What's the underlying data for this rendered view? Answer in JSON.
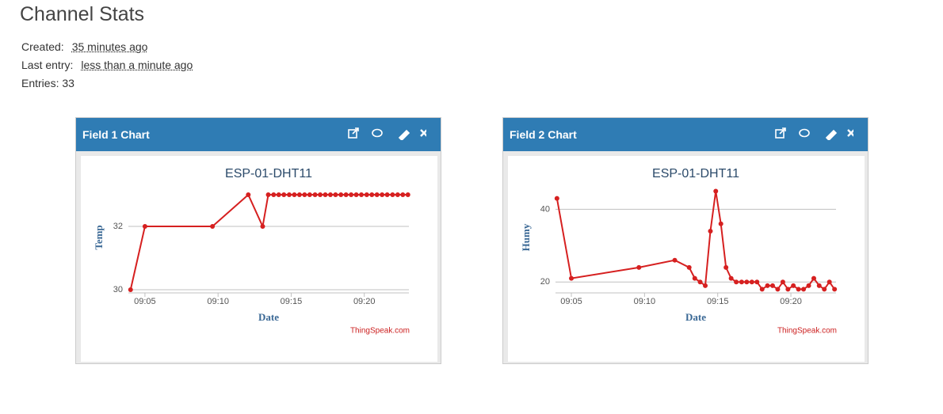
{
  "header": {
    "title": "Channel Stats"
  },
  "stats": {
    "created_label": "Created:",
    "created_value": "35 minutes ago",
    "last_entry_label": "Last entry:",
    "last_entry_value": "less than a minute ago",
    "entries_label": "Entries:",
    "entries_value": 33
  },
  "panels": [
    {
      "title": "Field 1 Chart"
    },
    {
      "title": "Field 2 Chart"
    }
  ],
  "chart_data": [
    {
      "type": "line",
      "title": "ESP-01-DHT11",
      "x_label": "Date",
      "y_label": "Temp",
      "credit": "ThingSpeak.com",
      "color": "#d62020",
      "grid": true,
      "x": [
        "09:04:01",
        "09:05:00",
        "09:09:37",
        "09:12:04",
        "09:13:03",
        "09:13:26",
        "09:13:48",
        "09:14:09",
        "09:14:30",
        "09:14:52",
        "09:15:13",
        "09:15:34",
        "09:15:55",
        "09:16:16",
        "09:16:38",
        "09:16:59",
        "09:17:20",
        "09:17:41",
        "09:18:02",
        "09:18:24",
        "09:18:45",
        "09:19:06",
        "09:19:27",
        "09:19:48",
        "09:20:10",
        "09:20:31",
        "09:20:52",
        "09:21:13",
        "09:21:34",
        "09:21:56",
        "09:22:17",
        "09:22:38",
        "09:22:59"
      ],
      "values": [
        30,
        32,
        32,
        33,
        32,
        33,
        33,
        33,
        33,
        33,
        33,
        33,
        33,
        33,
        33,
        33,
        33,
        33,
        33,
        33,
        33,
        33,
        33,
        33,
        33,
        33,
        33,
        33,
        33,
        33,
        33,
        33,
        33
      ],
      "xlim": [
        "09:03:52",
        "09:23:03"
      ],
      "xticks": [
        {
          "value": "09:05:00",
          "label": "09:05"
        },
        {
          "value": "09:10:00",
          "label": "09:10"
        },
        {
          "value": "09:15:00",
          "label": "09:15"
        },
        {
          "value": "09:20:00",
          "label": "09:20"
        }
      ],
      "ylim": [
        29.9,
        33.4
      ],
      "yticks": [
        30,
        32
      ]
    },
    {
      "type": "line",
      "title": "ESP-01-DHT11",
      "x_label": "Date",
      "y_label": "Humy",
      "credit": "ThingSpeak.com",
      "color": "#d62020",
      "grid": true,
      "x": [
        "09:04:01",
        "09:05:00",
        "09:09:37",
        "09:12:04",
        "09:13:03",
        "09:13:26",
        "09:13:48",
        "09:14:09",
        "09:14:30",
        "09:14:52",
        "09:15:13",
        "09:15:34",
        "09:15:55",
        "09:16:16",
        "09:16:38",
        "09:16:59",
        "09:17:20",
        "09:17:41",
        "09:18:02",
        "09:18:24",
        "09:18:45",
        "09:19:06",
        "09:19:27",
        "09:19:48",
        "09:20:10",
        "09:20:31",
        "09:20:52",
        "09:21:13",
        "09:21:34",
        "09:21:56",
        "09:22:17",
        "09:22:38",
        "09:22:59"
      ],
      "values": [
        43,
        21,
        24,
        26,
        24,
        21,
        20,
        19,
        34,
        45,
        36,
        24,
        21,
        20,
        20,
        20,
        20,
        20,
        18,
        19,
        19,
        18,
        20,
        18,
        19,
        18,
        18,
        19,
        21,
        19,
        18,
        20,
        18
      ],
      "xlim": [
        "09:03:55",
        "09:23:05"
      ],
      "xticks": [
        {
          "value": "09:05:00",
          "label": "09:05"
        },
        {
          "value": "09:10:00",
          "label": "09:10"
        },
        {
          "value": "09:15:00",
          "label": "09:15"
        },
        {
          "value": "09:20:00",
          "label": "09:20"
        }
      ],
      "ylim": [
        17,
        47.5
      ],
      "yticks": [
        20,
        40
      ]
    }
  ]
}
